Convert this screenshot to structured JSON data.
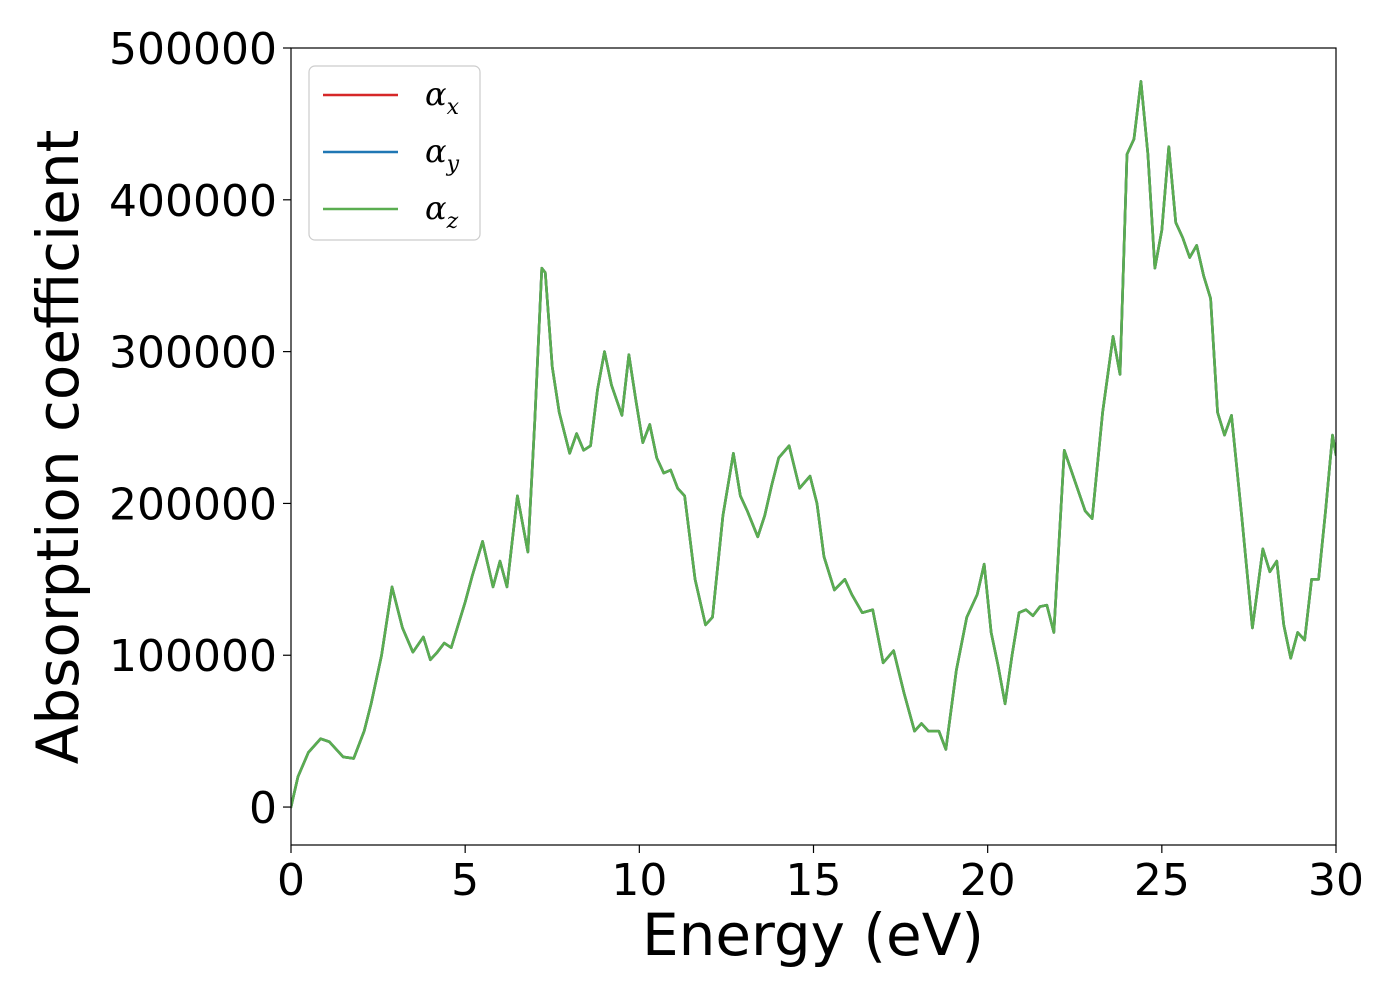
{
  "chart_data": {
    "type": "line",
    "title": "",
    "xlabel": "Energy (eV)",
    "ylabel": "Absorption coefficient",
    "xlim": [
      0,
      30
    ],
    "ylim": [
      -25000,
      500000
    ],
    "xticks": [
      0,
      5,
      10,
      15,
      20,
      25,
      30
    ],
    "xtick_labels": [
      "0",
      "5",
      "10",
      "15",
      "20",
      "25",
      "30"
    ],
    "yticks": [
      0,
      100000,
      200000,
      300000,
      400000,
      500000
    ],
    "ytick_labels": [
      "0",
      "100000",
      "200000",
      "300000",
      "400000",
      "500000"
    ],
    "grid": false,
    "legend_position": "top-left",
    "x": [
      0,
      0.2,
      0.5,
      0.85,
      1.1,
      1.3,
      1.5,
      1.8,
      2.1,
      2.3,
      2.6,
      2.9,
      3.2,
      3.5,
      3.8,
      4.0,
      4.2,
      4.4,
      4.6,
      4.8,
      5.0,
      5.2,
      5.5,
      5.8,
      6.0,
      6.2,
      6.5,
      6.8,
      7.0,
      7.2,
      7.3,
      7.5,
      7.7,
      8.0,
      8.2,
      8.4,
      8.6,
      8.8,
      9.0,
      9.2,
      9.5,
      9.7,
      9.9,
      10.1,
      10.3,
      10.5,
      10.7,
      10.9,
      11.1,
      11.3,
      11.6,
      11.9,
      12.1,
      12.4,
      12.7,
      12.9,
      13.1,
      13.4,
      13.6,
      13.8,
      14.0,
      14.3,
      14.6,
      14.9,
      15.1,
      15.3,
      15.6,
      15.9,
      16.1,
      16.4,
      16.7,
      17.0,
      17.3,
      17.6,
      17.9,
      18.1,
      18.3,
      18.6,
      18.8,
      19.1,
      19.4,
      19.7,
      19.9,
      20.1,
      20.3,
      20.5,
      20.7,
      20.9,
      21.1,
      21.3,
      21.5,
      21.7,
      21.9,
      22.2,
      22.5,
      22.8,
      23.0,
      23.3,
      23.6,
      23.8,
      24.0,
      24.2,
      24.4,
      24.6,
      24.8,
      25.0,
      25.2,
      25.4,
      25.6,
      25.8,
      26.0,
      26.2,
      26.4,
      26.6,
      26.8,
      27.0,
      27.3,
      27.6,
      27.9,
      28.1,
      28.3,
      28.5,
      28.7,
      28.9,
      29.1,
      29.3,
      29.5,
      29.7,
      29.9,
      30.0
    ],
    "series": [
      {
        "name": "x",
        "color": "#d62728",
        "values": [
          0,
          20000,
          36000,
          45000,
          43000,
          38000,
          33000,
          32000,
          50000,
          68000,
          100000,
          145000,
          118000,
          102000,
          112000,
          97000,
          102000,
          108000,
          105000,
          120000,
          135000,
          152000,
          175000,
          145000,
          162000,
          145000,
          205000,
          168000,
          255000,
          355000,
          352000,
          290000,
          260000,
          233000,
          246000,
          235000,
          238000,
          275000,
          300000,
          278000,
          258000,
          298000,
          268000,
          240000,
          252000,
          230000,
          220000,
          222000,
          210000,
          205000,
          150000,
          120000,
          125000,
          192000,
          233000,
          205000,
          195000,
          178000,
          192000,
          212000,
          230000,
          238000,
          210000,
          218000,
          200000,
          165000,
          143000,
          150000,
          140000,
          128000,
          130000,
          95000,
          103000,
          75000,
          50000,
          55000,
          50000,
          50000,
          38000,
          90000,
          125000,
          140000,
          160000,
          115000,
          93000,
          68000,
          100000,
          128000,
          130000,
          126000,
          132000,
          133000,
          115000,
          235000,
          215000,
          195000,
          190000,
          260000,
          310000,
          285000,
          430000,
          440000,
          478000,
          430000,
          355000,
          380000,
          435000,
          385000,
          375000,
          362000,
          370000,
          350000,
          335000,
          260000,
          245000,
          258000,
          190000,
          118000,
          170000,
          155000,
          162000,
          120000,
          98000,
          115000,
          110000,
          150000,
          150000,
          195000,
          245000,
          232000
        ]
      },
      {
        "name": "y",
        "color": "#1f77b4",
        "values": [
          0,
          20000,
          36000,
          45000,
          43000,
          38000,
          33000,
          32000,
          50000,
          68000,
          100000,
          145000,
          118000,
          102000,
          112000,
          97000,
          102000,
          108000,
          105000,
          120000,
          135000,
          152000,
          175000,
          145000,
          162000,
          145000,
          205000,
          168000,
          255000,
          355000,
          352000,
          290000,
          260000,
          233000,
          246000,
          235000,
          238000,
          275000,
          300000,
          278000,
          258000,
          298000,
          268000,
          240000,
          252000,
          230000,
          220000,
          222000,
          210000,
          205000,
          150000,
          120000,
          125000,
          192000,
          233000,
          205000,
          195000,
          178000,
          192000,
          212000,
          230000,
          238000,
          210000,
          218000,
          200000,
          165000,
          143000,
          150000,
          140000,
          128000,
          130000,
          95000,
          103000,
          75000,
          50000,
          55000,
          50000,
          50000,
          38000,
          90000,
          125000,
          140000,
          160000,
          115000,
          93000,
          68000,
          100000,
          128000,
          130000,
          126000,
          132000,
          133000,
          115000,
          235000,
          215000,
          195000,
          190000,
          260000,
          310000,
          285000,
          430000,
          440000,
          478000,
          430000,
          355000,
          380000,
          435000,
          385000,
          375000,
          362000,
          370000,
          350000,
          335000,
          260000,
          245000,
          258000,
          190000,
          118000,
          170000,
          155000,
          162000,
          120000,
          98000,
          115000,
          110000,
          150000,
          150000,
          195000,
          245000,
          232000
        ]
      },
      {
        "name": "z",
        "color": "#5aad50",
        "values": [
          0,
          20000,
          36000,
          45000,
          43000,
          38000,
          33000,
          32000,
          50000,
          68000,
          100000,
          145000,
          118000,
          102000,
          112000,
          97000,
          102000,
          108000,
          105000,
          120000,
          135000,
          152000,
          175000,
          145000,
          162000,
          145000,
          205000,
          168000,
          255000,
          355000,
          352000,
          290000,
          260000,
          233000,
          246000,
          235000,
          238000,
          275000,
          300000,
          278000,
          258000,
          298000,
          268000,
          240000,
          252000,
          230000,
          220000,
          222000,
          210000,
          205000,
          150000,
          120000,
          125000,
          192000,
          233000,
          205000,
          195000,
          178000,
          192000,
          212000,
          230000,
          238000,
          210000,
          218000,
          200000,
          165000,
          143000,
          150000,
          140000,
          128000,
          130000,
          95000,
          103000,
          75000,
          50000,
          55000,
          50000,
          50000,
          38000,
          90000,
          125000,
          140000,
          160000,
          115000,
          93000,
          68000,
          100000,
          128000,
          130000,
          126000,
          132000,
          133000,
          115000,
          235000,
          215000,
          195000,
          190000,
          260000,
          310000,
          285000,
          430000,
          440000,
          478000,
          430000,
          355000,
          380000,
          435000,
          385000,
          375000,
          362000,
          370000,
          350000,
          335000,
          260000,
          245000,
          258000,
          190000,
          118000,
          170000,
          155000,
          162000,
          120000,
          98000,
          115000,
          110000,
          150000,
          150000,
          195000,
          245000,
          232000
        ]
      }
    ],
    "legend": [
      {
        "symbol": "α",
        "sub": "x",
        "color": "#d62728"
      },
      {
        "symbol": "α",
        "sub": "y",
        "color": "#1f77b4"
      },
      {
        "symbol": "α",
        "sub": "z",
        "color": "#5aad50"
      }
    ]
  }
}
